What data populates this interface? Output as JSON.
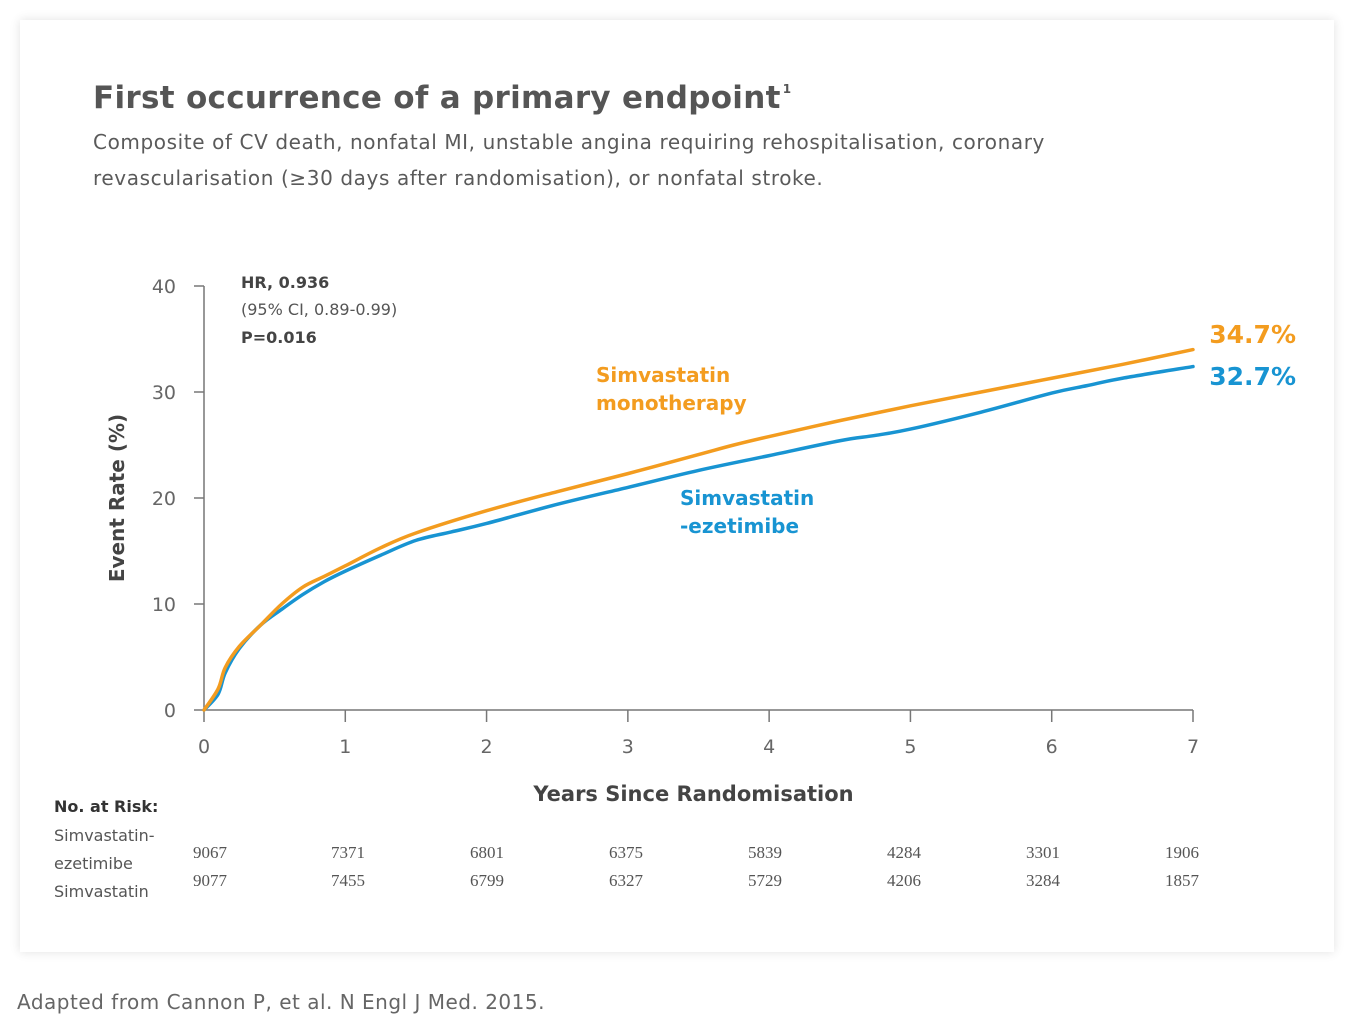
{
  "title": "First occurrence of a primary endpoint",
  "title_superscript": "1",
  "subtitle": "Composite of CV death, nonfatal MI, unstable angina requiring rehospitalisation, coronary revascularisation (≥30 days after randomisation), or nonfatal stroke.",
  "source": "Adapted from Cannon P, et al. N Engl J Med. 2015.",
  "stats": {
    "hr": "HR, 0.936",
    "ci": "(95% CI, 0.89-0.99)",
    "p": "P=0.016"
  },
  "risk_table": {
    "header": "No. at Risk:",
    "rows": [
      {
        "label_line1": "Simvastatin-",
        "label_line2": "ezetimibe",
        "values": [
          "9067",
          "7371",
          "6801",
          "6375",
          "5839",
          "4284",
          "3301",
          "1906"
        ]
      },
      {
        "label": "Simvastatin",
        "values": [
          "9077",
          "7455",
          "6799",
          "6327",
          "5729",
          "4206",
          "3284",
          "1857"
        ]
      }
    ]
  },
  "colors": {
    "mono": "#F39C1F",
    "eze": "#1894D2",
    "axis": "#777777",
    "text": "#555555"
  },
  "chart_data": {
    "type": "line",
    "title": "First occurrence of a primary endpoint",
    "xlabel": "Years Since Randomisation",
    "ylabel": "Event Rate (%)",
    "xlim": [
      0,
      7
    ],
    "ylim": [
      0,
      40
    ],
    "xticks": [
      "0",
      "1",
      "2",
      "3",
      "4",
      "5",
      "6",
      "7"
    ],
    "yticks": [
      "0",
      "10",
      "20",
      "30",
      "40"
    ],
    "grid": false,
    "series": [
      {
        "name": "Simvastatin monotherapy",
        "label_line1": "Simvastatin",
        "label_line2": "monotherapy",
        "end_label": "34.7%",
        "color": "#F39C1F",
        "x": [
          0,
          0.1,
          0.15,
          0.25,
          0.4,
          0.55,
          0.7,
          0.85,
          1.0,
          1.25,
          1.5,
          2.0,
          2.5,
          3.0,
          3.5,
          3.75,
          4.0,
          4.5,
          5.0,
          5.5,
          6.0,
          6.5,
          7.0
        ],
        "y": [
          0,
          2,
          4,
          6,
          8,
          10,
          11.6,
          12.6,
          13.6,
          15.3,
          16.7,
          18.8,
          20.6,
          22.3,
          24.1,
          25.0,
          25.8,
          27.3,
          28.7,
          30.0,
          31.3,
          32.6,
          34.0
        ]
      },
      {
        "name": "Simvastatin-ezetimibe",
        "label_line1": "Simvastatin",
        "label_line2": "-ezetimibe",
        "end_label": "32.7%",
        "color": "#1894D2",
        "x": [
          0,
          0.1,
          0.15,
          0.25,
          0.4,
          0.55,
          0.7,
          0.85,
          1.0,
          1.25,
          1.5,
          1.75,
          2.0,
          2.5,
          3.0,
          3.5,
          4.0,
          4.5,
          4.75,
          5.0,
          5.5,
          6.0,
          6.25,
          6.5,
          7.0
        ],
        "y": [
          0,
          1.5,
          3.5,
          5.8,
          8,
          9.5,
          10.9,
          12.1,
          13.1,
          14.6,
          16.0,
          16.8,
          17.6,
          19.4,
          21.0,
          22.6,
          24.0,
          25.4,
          25.9,
          26.5,
          28.1,
          29.9,
          30.6,
          31.3,
          32.4
        ]
      }
    ],
    "annotations": [
      "HR, 0.936",
      "(95% CI, 0.89-0.99)",
      "P=0.016"
    ]
  }
}
